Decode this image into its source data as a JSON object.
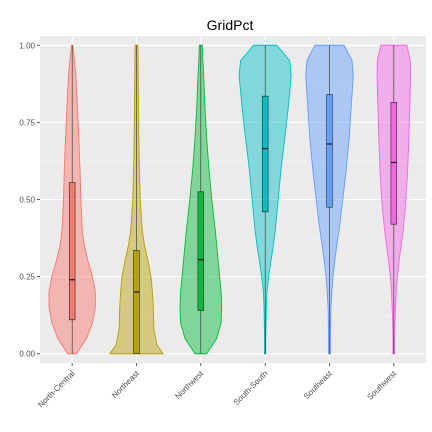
{
  "chart_data": {
    "type": "violin",
    "title": "GridPct",
    "xlabel": "",
    "ylabel": "",
    "ylim": [
      -0.03,
      1.03
    ],
    "yticks": [
      0.0,
      0.25,
      0.5,
      0.75,
      1.0
    ],
    "ytick_labels": [
      "0.00",
      "0.25",
      "0.50",
      "0.75",
      "1.00"
    ],
    "grid": true,
    "legend": "none",
    "categories": [
      "North-Central",
      "Northeast",
      "Northwest",
      "South-South",
      "Southeast",
      "Southwest"
    ],
    "colors": [
      "#F8766D",
      "#B79F00",
      "#00BA38",
      "#00BFC4",
      "#619CFF",
      "#F564E3"
    ],
    "series": [
      {
        "category": "North-Central",
        "min": 0.0,
        "q1": 0.11,
        "median": 0.24,
        "q3": 0.555,
        "max": 1.0,
        "density_y": [
          0.0,
          0.05,
          0.1,
          0.15,
          0.2,
          0.25,
          0.3,
          0.35,
          0.4,
          0.5,
          0.6,
          0.7,
          0.8,
          0.9,
          0.95,
          1.0
        ],
        "density_width": [
          0.15,
          0.5,
          0.7,
          0.8,
          0.8,
          0.7,
          0.55,
          0.42,
          0.35,
          0.3,
          0.27,
          0.23,
          0.18,
          0.13,
          0.08,
          0.02
        ]
      },
      {
        "category": "Northeast",
        "min": 0.0,
        "q1": 0.0,
        "median": 0.2,
        "q3": 0.335,
        "max": 1.0,
        "density_y": [
          0.0,
          0.03,
          0.08,
          0.15,
          0.2,
          0.25,
          0.3,
          0.35,
          0.4,
          0.5,
          0.6,
          0.7,
          0.8,
          0.9,
          1.0
        ],
        "density_width": [
          0.92,
          0.7,
          0.6,
          0.58,
          0.55,
          0.5,
          0.4,
          0.28,
          0.2,
          0.13,
          0.1,
          0.08,
          0.07,
          0.06,
          0.05
        ]
      },
      {
        "category": "Northwest",
        "min": 0.0,
        "q1": 0.14,
        "median": 0.305,
        "q3": 0.525,
        "max": 1.0,
        "density_y": [
          0.0,
          0.05,
          0.1,
          0.15,
          0.2,
          0.3,
          0.4,
          0.5,
          0.6,
          0.7,
          0.8,
          0.9,
          0.95,
          1.0
        ],
        "density_width": [
          0.2,
          0.55,
          0.7,
          0.72,
          0.7,
          0.6,
          0.5,
          0.38,
          0.28,
          0.2,
          0.14,
          0.1,
          0.07,
          0.05
        ]
      },
      {
        "category": "South-South",
        "min": 0.0,
        "q1": 0.46,
        "median": 0.665,
        "q3": 0.835,
        "max": 1.0,
        "density_y": [
          0.0,
          0.05,
          0.1,
          0.15,
          0.2,
          0.25,
          0.3,
          0.35,
          0.4,
          0.5,
          0.6,
          0.7,
          0.8,
          0.9,
          0.95,
          1.0
        ],
        "density_width": [
          0.02,
          0.02,
          0.03,
          0.04,
          0.06,
          0.12,
          0.2,
          0.28,
          0.35,
          0.45,
          0.55,
          0.68,
          0.8,
          0.9,
          0.85,
          0.4
        ]
      },
      {
        "category": "Southeast",
        "min": 0.0,
        "q1": 0.475,
        "median": 0.68,
        "q3": 0.84,
        "max": 1.0,
        "density_y": [
          0.0,
          0.05,
          0.1,
          0.15,
          0.2,
          0.25,
          0.3,
          0.35,
          0.4,
          0.5,
          0.6,
          0.7,
          0.8,
          0.9,
          0.95,
          1.0
        ],
        "density_width": [
          0.03,
          0.03,
          0.04,
          0.05,
          0.08,
          0.12,
          0.18,
          0.25,
          0.33,
          0.46,
          0.58,
          0.68,
          0.75,
          0.82,
          0.78,
          0.5
        ]
      },
      {
        "category": "Southwest",
        "min": 0.0,
        "q1": 0.42,
        "median": 0.62,
        "q3": 0.815,
        "max": 1.0,
        "density_y": [
          0.0,
          0.05,
          0.1,
          0.15,
          0.2,
          0.25,
          0.3,
          0.35,
          0.4,
          0.5,
          0.6,
          0.7,
          0.8,
          0.9,
          0.95,
          1.0
        ],
        "density_width": [
          0.03,
          0.03,
          0.04,
          0.06,
          0.08,
          0.12,
          0.18,
          0.25,
          0.32,
          0.42,
          0.48,
          0.52,
          0.55,
          0.58,
          0.57,
          0.45
        ]
      }
    ]
  }
}
